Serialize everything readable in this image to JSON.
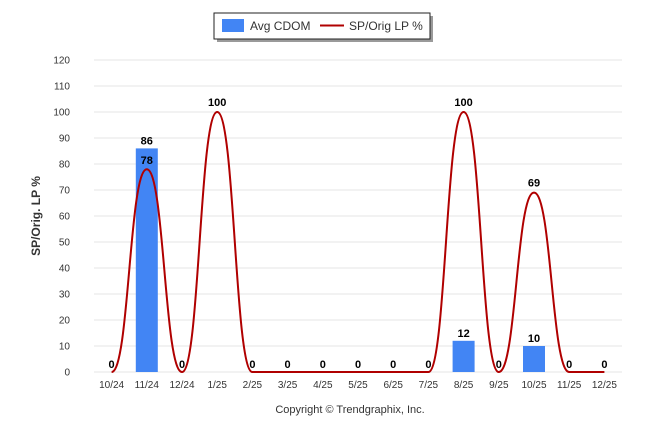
{
  "chart_data": {
    "type": "bar",
    "categories": [
      "10/24",
      "11/24",
      "12/24",
      "1/25",
      "2/25",
      "3/25",
      "4/25",
      "5/25",
      "6/25",
      "7/25",
      "8/25",
      "9/25",
      "10/25",
      "11/25",
      "12/25"
    ],
    "series": [
      {
        "name": "Avg CDOM",
        "type": "bar",
        "color": "#4285f4",
        "values": [
          0,
          86,
          0,
          0,
          0,
          0,
          0,
          0,
          0,
          0,
          12,
          0,
          10,
          0,
          0
        ]
      },
      {
        "name": "SP/Orig LP %",
        "type": "line",
        "color": "#b00000",
        "values": [
          0,
          78,
          0,
          100,
          0,
          0,
          0,
          0,
          0,
          0,
          100,
          0,
          69,
          0,
          0
        ]
      }
    ],
    "ylabel": "SP/Orig. LP %",
    "xlabel": "",
    "ylim": [
      0,
      120
    ],
    "yticks": [
      0,
      10,
      20,
      30,
      40,
      50,
      60,
      70,
      80,
      90,
      100,
      110,
      120
    ],
    "grid": true,
    "legend_position": "top-center"
  },
  "footer": {
    "copyright": "Copyright © Trendgraphix, Inc."
  }
}
